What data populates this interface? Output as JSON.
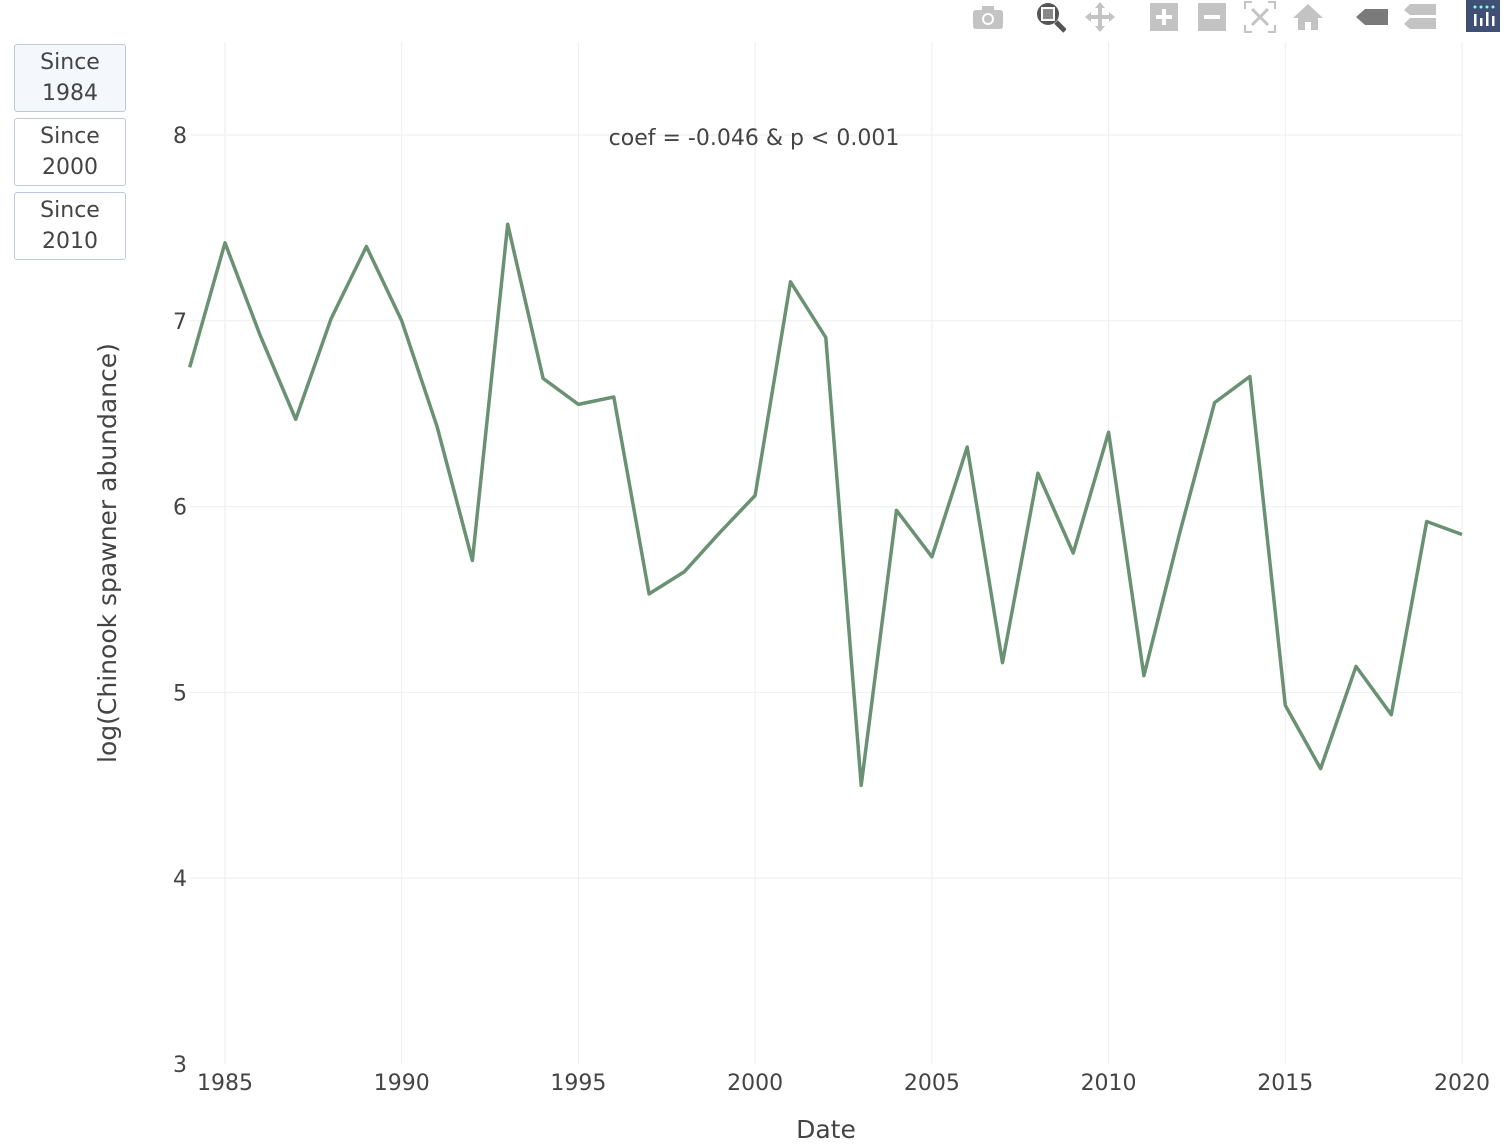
{
  "buttons": [
    "Since\n1984",
    "Since\n2000",
    "Since\n2010"
  ],
  "toolbar": [
    "camera-icon",
    "zoom-icon",
    "pan-icon",
    "zoom-in-icon",
    "zoom-out-icon",
    "autoscale-icon",
    "reset-axes-icon",
    "hover-closest-icon",
    "hover-compare-icon",
    "plotly-logo-icon"
  ],
  "colors": {
    "line": "#6a9272",
    "grid": "#eeeeee",
    "text": "#444444"
  },
  "chart_data": {
    "type": "line",
    "title": "",
    "xlabel": "Date",
    "ylabel": "log(Chinook spawner abundance)",
    "annotation": "coef = -0.046 & p < 0.001",
    "xlim": [
      1984,
      2020
    ],
    "ylim": [
      3,
      8.5
    ],
    "xticks": [
      1985,
      1990,
      1995,
      2000,
      2005,
      2010,
      2015,
      2020
    ],
    "yticks": [
      3,
      4,
      5,
      6,
      7,
      8
    ],
    "grid": true,
    "x": [
      1984,
      1985,
      1986,
      1987,
      1988,
      1989,
      1990,
      1991,
      1992,
      1993,
      1994,
      1995,
      1996,
      1997,
      1998,
      1999,
      2000,
      2001,
      2002,
      2003,
      2004,
      2005,
      2006,
      2007,
      2008,
      2009,
      2010,
      2011,
      2012,
      2013,
      2014,
      2015,
      2016,
      2017,
      2018,
      2019,
      2020
    ],
    "y": [
      6.75,
      7.42,
      6.92,
      6.47,
      7.01,
      7.4,
      7.0,
      6.43,
      5.71,
      7.52,
      6.69,
      6.55,
      6.59,
      5.53,
      5.65,
      5.86,
      6.06,
      7.21,
      6.91,
      4.5,
      5.98,
      5.73,
      6.32,
      5.16,
      6.18,
      5.75,
      6.4,
      5.09,
      5.85,
      6.56,
      6.7,
      4.93,
      4.59,
      5.14,
      4.88,
      5.92,
      5.85
    ]
  }
}
